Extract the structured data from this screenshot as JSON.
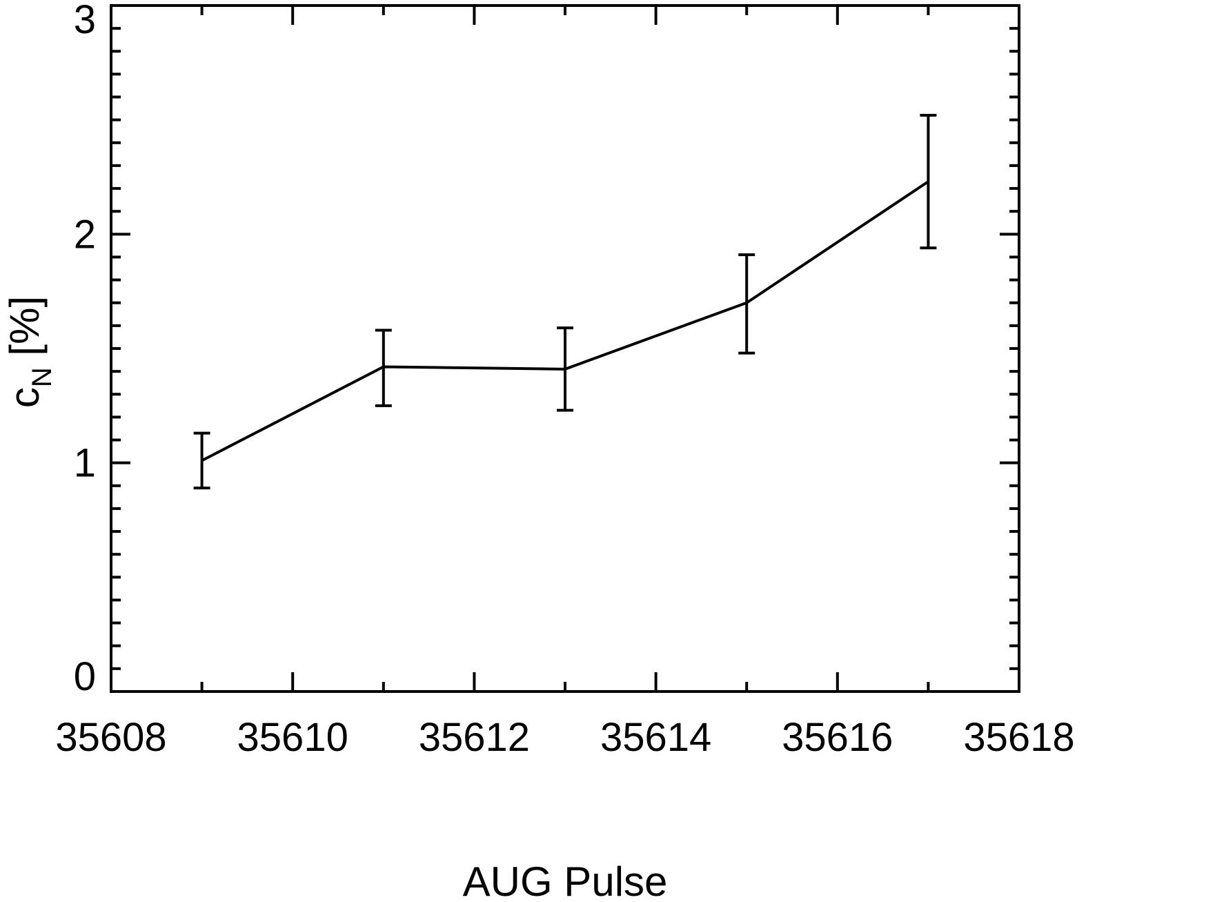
{
  "chart_data": {
    "type": "line",
    "title": "",
    "xlabel": "AUG Pulse",
    "ylabel": {
      "main": "c",
      "subscript": "N",
      "unit": " [%]"
    },
    "xlim": [
      35608,
      35618
    ],
    "ylim": [
      0,
      3
    ],
    "x_major_ticks": [
      35608,
      35610,
      35612,
      35614,
      35616,
      35618
    ],
    "x_tick_labels": [
      "35608",
      "35610",
      "35612",
      "35614",
      "35616",
      "35618"
    ],
    "x_minor_step": 1,
    "y_major_ticks": [
      0,
      1,
      2,
      3
    ],
    "y_tick_labels": [
      "0",
      "1",
      "2",
      "3"
    ],
    "y_minor_step": 0.1,
    "grid": false,
    "legend": "none",
    "color": "#000000",
    "series": [
      {
        "x": [
          35609,
          35611,
          35613,
          35615,
          35617
        ],
        "y": [
          1.01,
          1.42,
          1.41,
          1.7,
          2.23
        ],
        "err_low": [
          0.89,
          1.25,
          1.23,
          1.48,
          1.94
        ],
        "err_high": [
          1.13,
          1.58,
          1.59,
          1.91,
          2.52
        ]
      }
    ]
  }
}
